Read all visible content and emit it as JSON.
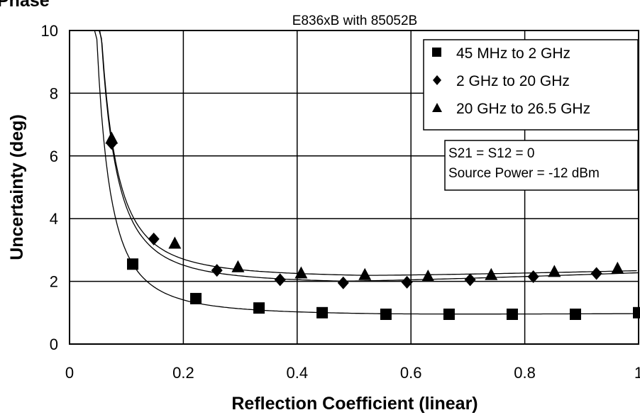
{
  "page": {
    "heading_fragment": "Phase"
  },
  "chart_data": {
    "type": "scatter",
    "title": "E836xB with 85052B",
    "xlabel": "Reflection Coefficient (linear)",
    "ylabel": "Uncertainty (deg)",
    "xlim": [
      0,
      1
    ],
    "ylim": [
      0,
      10
    ],
    "x_ticks": [
      "0",
      "0.2",
      "0.4",
      "0.6",
      "0.8",
      "1"
    ],
    "y_ticks": [
      "0",
      "2",
      "4",
      "6",
      "8",
      "10"
    ],
    "grid": true,
    "legend_position": "top-right",
    "series": [
      {
        "name": "45 MHz to 2 GHz",
        "marker": "square",
        "color": "#000000",
        "x": [
          0.111,
          0.222,
          0.333,
          0.444,
          0.556,
          0.667,
          0.778,
          0.889,
          1.0
        ],
        "y": [
          2.55,
          1.45,
          1.15,
          1.0,
          0.95,
          0.95,
          0.95,
          0.95,
          1.0
        ]
      },
      {
        "name": "2 GHz to 20 GHz",
        "marker": "diamond",
        "color": "#000000",
        "x": [
          0.074,
          0.148,
          0.259,
          0.37,
          0.481,
          0.593,
          0.704,
          0.815,
          0.926
        ],
        "y": [
          6.4,
          3.35,
          2.35,
          2.05,
          1.95,
          1.97,
          2.05,
          2.15,
          2.25
        ]
      },
      {
        "name": "20 GHz to 26.5 GHz",
        "marker": "triangle",
        "color": "#000000",
        "x": [
          0.074,
          0.185,
          0.296,
          0.407,
          0.519,
          0.63,
          0.741,
          0.852,
          0.963
        ],
        "y": [
          6.55,
          3.2,
          2.45,
          2.25,
          2.2,
          2.15,
          2.2,
          2.3,
          2.4
        ]
      }
    ],
    "annotation": {
      "lines": [
        "S21 = S12 = 0",
        "Source Power = -12 dBm"
      ]
    }
  }
}
